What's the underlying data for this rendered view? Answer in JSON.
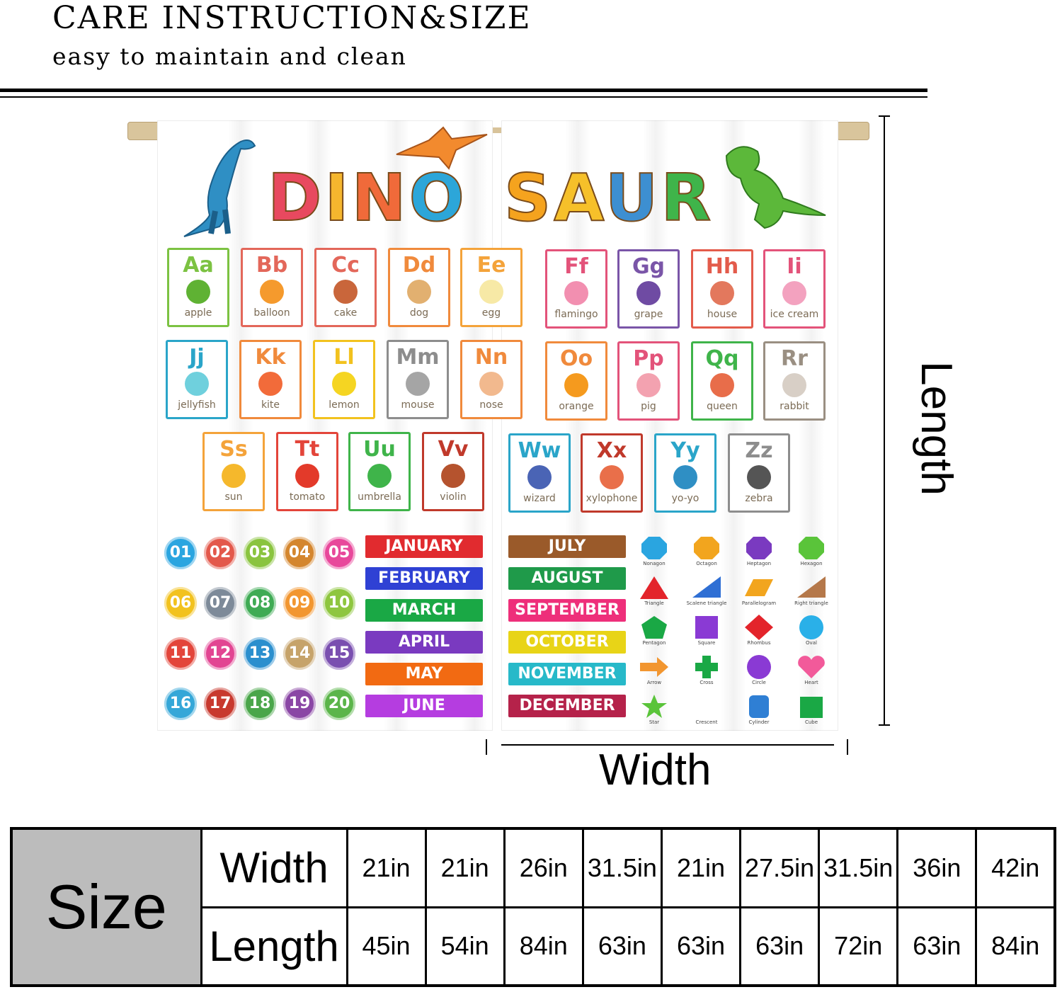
{
  "header": {
    "title": "CARE INSTRUCTION&SIZE",
    "subtitle": "easy to maintain and clean"
  },
  "curtain": {
    "title_letters": [
      "D",
      "I",
      "N",
      "O",
      "S",
      "A",
      "U",
      "R"
    ],
    "title_colors": [
      "#e8495f",
      "#f5b62e",
      "#f06a3a",
      "#2ca6d9",
      "#f5a31e",
      "#f6c02a",
      "#3d8fd1",
      "#3fb44a"
    ],
    "alphabet": [
      {
        "letter": "Aa",
        "word": "apple",
        "color": "#7cc242",
        "pic": "#5fb233"
      },
      {
        "letter": "Bb",
        "word": "balloon",
        "color": "#e3675a",
        "pic": "#f59a2d"
      },
      {
        "letter": "Cc",
        "word": "cake",
        "color": "#e3675a",
        "pic": "#c9663b"
      },
      {
        "letter": "Dd",
        "word": "dog",
        "color": "#f08a3c",
        "pic": "#e2b070"
      },
      {
        "letter": "Ee",
        "word": "egg",
        "color": "#f4a33a",
        "pic": "#f7e9a6"
      },
      {
        "letter": "Ff",
        "word": "flamingo",
        "color": "#e3537a",
        "pic": "#f28fb0"
      },
      {
        "letter": "Gg",
        "word": "grape",
        "color": "#7a55a8",
        "pic": "#6f4ba3"
      },
      {
        "letter": "Hh",
        "word": "house",
        "color": "#e35b4b",
        "pic": "#e3785d"
      },
      {
        "letter": "Ii",
        "word": "ice cream",
        "color": "#e3537a",
        "pic": "#f3a2bf"
      },
      {
        "letter": "Jj",
        "word": "jellyfish",
        "color": "#2aa5c9",
        "pic": "#6fd0dd"
      },
      {
        "letter": "Kk",
        "word": "kite",
        "color": "#f08a3c",
        "pic": "#f26b3a"
      },
      {
        "letter": "Ll",
        "word": "lemon",
        "color": "#f2c21e",
        "pic": "#f5d522"
      },
      {
        "letter": "Mm",
        "word": "mouse",
        "color": "#8d8d8d",
        "pic": "#a5a5a5"
      },
      {
        "letter": "Nn",
        "word": "nose",
        "color": "#f08a3c",
        "pic": "#f2b98e"
      },
      {
        "letter": "Oo",
        "word": "orange",
        "color": "#f08a3c",
        "pic": "#f59a1e"
      },
      {
        "letter": "Pp",
        "word": "pig",
        "color": "#e3537a",
        "pic": "#f3a2b0"
      },
      {
        "letter": "Qq",
        "word": "queen",
        "color": "#3fb44a",
        "pic": "#e86d4a"
      },
      {
        "letter": "Rr",
        "word": "rabbit",
        "color": "#9a8f82",
        "pic": "#d8cfc6"
      },
      {
        "letter": "Ss",
        "word": "sun",
        "color": "#f4a33a",
        "pic": "#f5b82c"
      },
      {
        "letter": "Tt",
        "word": "tomato",
        "color": "#e3453a",
        "pic": "#e33a2a"
      },
      {
        "letter": "Uu",
        "word": "umbrella",
        "color": "#3fb44a",
        "pic": "#3fb44a"
      },
      {
        "letter": "Vv",
        "word": "violin",
        "color": "#c0392b",
        "pic": "#b5532e"
      },
      {
        "letter": "Ww",
        "word": "wizard",
        "color": "#2aa5c9",
        "pic": "#4a64b5"
      },
      {
        "letter": "Xx",
        "word": "xylophone",
        "color": "#c0392b",
        "pic": "#e96f4a"
      },
      {
        "letter": "Yy",
        "word": "yo-yo",
        "color": "#2aa5c9",
        "pic": "#2f8fc4"
      },
      {
        "letter": "Zz",
        "word": "zebra",
        "color": "#8d8d8d",
        "pic": "#555555"
      }
    ],
    "numbers": [
      {
        "n": "01",
        "c": "#2aa5e0"
      },
      {
        "n": "02",
        "c": "#e3584b"
      },
      {
        "n": "03",
        "c": "#8ac43f"
      },
      {
        "n": "04",
        "c": "#d4862e"
      },
      {
        "n": "05",
        "c": "#e8489b"
      },
      {
        "n": "06",
        "c": "#f2c21e"
      },
      {
        "n": "07",
        "c": "#7d8a99"
      },
      {
        "n": "08",
        "c": "#3fab54"
      },
      {
        "n": "09",
        "c": "#f29630"
      },
      {
        "n": "10",
        "c": "#8ec63f"
      },
      {
        "n": "11",
        "c": "#e3453a"
      },
      {
        "n": "12",
        "c": "#e24592"
      },
      {
        "n": "13",
        "c": "#2b8fce"
      },
      {
        "n": "14",
        "c": "#c6a36a"
      },
      {
        "n": "15",
        "c": "#7a4fb0"
      },
      {
        "n": "16",
        "c": "#35a7d8"
      },
      {
        "n": "17",
        "c": "#c8392e"
      },
      {
        "n": "18",
        "c": "#4aa64a"
      },
      {
        "n": "19",
        "c": "#8a46a5"
      },
      {
        "n": "20",
        "c": "#5bb54a"
      }
    ],
    "months": [
      {
        "name": "JANUARY",
        "c": "#e12b2f"
      },
      {
        "name": "FEBRUARY",
        "c": "#2f41d4"
      },
      {
        "name": "MARCH",
        "c": "#1aa845"
      },
      {
        "name": "APRIL",
        "c": "#7a3ac0"
      },
      {
        "name": "MAY",
        "c": "#f26a12"
      },
      {
        "name": "JUNE",
        "c": "#b53de0"
      },
      {
        "name": "JULY",
        "c": "#9a5a2a"
      },
      {
        "name": "AUGUST",
        "c": "#1f9a4a"
      },
      {
        "name": "SEPTEMBER",
        "c": "#ee2f7a"
      },
      {
        "name": "OCTOBER",
        "c": "#e8d417"
      },
      {
        "name": "NOVEMBER",
        "c": "#27b9c9"
      },
      {
        "name": "DECEMBER",
        "c": "#b5224a"
      }
    ],
    "shapes": [
      {
        "name": "Nonagon",
        "c": "#2aa5e0",
        "kind": "poly"
      },
      {
        "name": "Octagon",
        "c": "#f2a51e",
        "kind": "poly"
      },
      {
        "name": "Heptagon",
        "c": "#7a3ac0",
        "kind": "poly"
      },
      {
        "name": "Hexagon",
        "c": "#5ac43a",
        "kind": "poly"
      },
      {
        "name": "Triangle",
        "c": "#e3242b",
        "kind": "triangle"
      },
      {
        "name": "Scalene triangle",
        "c": "#2f6fd4",
        "kind": "scalene"
      },
      {
        "name": "Parallelogram",
        "c": "#f2a51e",
        "kind": "para"
      },
      {
        "name": "Right triangle",
        "c": "#b5784a",
        "kind": "right"
      },
      {
        "name": "Pentagon",
        "c": "#1aa845",
        "kind": "pent"
      },
      {
        "name": "Square",
        "c": "#8a3ad4",
        "kind": "square"
      },
      {
        "name": "Rhombus",
        "c": "#e3242b",
        "kind": "rhombus"
      },
      {
        "name": "Oval",
        "c": "#2ab0e8",
        "kind": "oval"
      },
      {
        "name": "Arrow",
        "c": "#f29630",
        "kind": "arrow"
      },
      {
        "name": "Cross",
        "c": "#1aa845",
        "kind": "cross"
      },
      {
        "name": "Circle",
        "c": "#8a3ad4",
        "kind": "circle"
      },
      {
        "name": "Heart",
        "c": "#f25a9a",
        "kind": "heart"
      },
      {
        "name": "Star",
        "c": "#5ac43a",
        "kind": "star"
      },
      {
        "name": "Crescent",
        "c": "#f2c21e",
        "kind": "crescent"
      },
      {
        "name": "Cylinder",
        "c": "#2f7fd4",
        "kind": "cyl"
      },
      {
        "name": "Cube",
        "c": "#1aa845",
        "kind": "cube"
      }
    ]
  },
  "dimensions": {
    "length_label": "Length",
    "width_label": "Width"
  },
  "size_table": {
    "header": "Size",
    "width_label": "Width",
    "length_label": "Length",
    "widths": [
      "21in",
      "21in",
      "26in",
      "31.5in",
      "21in",
      "27.5in",
      "31.5in",
      "36in",
      "42in"
    ],
    "lengths": [
      "45in",
      "54in",
      "84in",
      "63in",
      "63in",
      "63in",
      "72in",
      "63in",
      "84in"
    ]
  }
}
